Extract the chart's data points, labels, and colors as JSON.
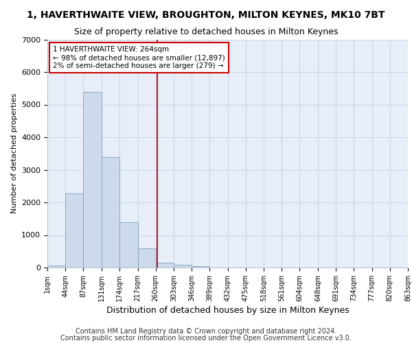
{
  "title": "1, HAVERTHWAITE VIEW, BROUGHTON, MILTON KEYNES, MK10 7BT",
  "subtitle": "Size of property relative to detached houses in Milton Keynes",
  "xlabel": "Distribution of detached houses by size in Milton Keynes",
  "ylabel": "Number of detached properties",
  "bar_color": "#ccdaeb",
  "bar_edgecolor": "#7aa0c0",
  "vline_value": 264,
  "vline_color": "#cc0000",
  "annotation_text": "1 HAVERTHWAITE VIEW: 264sqm\n← 98% of detached houses are smaller (12,897)\n2% of semi-detached houses are larger (279) →",
  "annotation_box_color": "#ffffff",
  "annotation_box_edgecolor": "#cc0000",
  "footer_line1": "Contains HM Land Registry data © Crown copyright and database right 2024.",
  "footer_line2": "Contains public sector information licensed under the Open Government Licence v3.0.",
  "bin_edges": [
    1,
    44,
    87,
    131,
    174,
    217,
    260,
    303,
    346,
    389,
    432,
    475,
    518,
    561,
    604,
    648,
    691,
    734,
    777,
    820,
    863
  ],
  "bin_counts": [
    60,
    2280,
    5400,
    3380,
    1380,
    590,
    150,
    90,
    50,
    10,
    5,
    2,
    0,
    0,
    0,
    0,
    0,
    0,
    0,
    0
  ],
  "ylim": [
    0,
    7000
  ],
  "yticks": [
    0,
    1000,
    2000,
    3000,
    4000,
    5000,
    6000,
    7000
  ],
  "plot_background": "#e8eef8",
  "title_fontsize": 10,
  "subtitle_fontsize": 9,
  "xlabel_fontsize": 9,
  "ylabel_fontsize": 8,
  "footer_fontsize": 7,
  "tick_fontsize": 7,
  "ytick_fontsize": 8
}
